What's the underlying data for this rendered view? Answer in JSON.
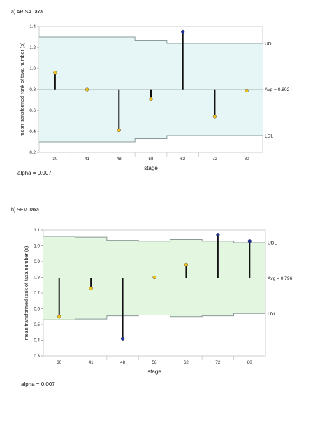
{
  "colors": {
    "band_a": "#e6f6f7",
    "band_b": "#e3f6e0",
    "limit_line": "#8a9a98",
    "avg_line": "#b8c8c6",
    "stem": "#111111",
    "point_within": "#f0c21c",
    "point_outside": "#1c2f9c"
  },
  "panels": [
    {
      "title": "a) ARISA Taxa",
      "alpha_text": "alpha = 0.007"
    },
    {
      "title": "b) SEM Taxa",
      "alpha_text": "alpha = 0.007"
    }
  ],
  "chart_data": [
    {
      "type": "scatter",
      "title": "a) ARISA Taxa",
      "xlabel": "stage",
      "ylabel": "mean transformed rank of taxa number (s)",
      "categories": [
        "30",
        "41",
        "48",
        "58",
        "62",
        "72",
        "80"
      ],
      "values": [
        0.96,
        0.8,
        0.41,
        0.71,
        1.35,
        0.54,
        0.79
      ],
      "point_status": [
        "within",
        "within",
        "within",
        "within",
        "outside",
        "within",
        "within"
      ],
      "avg": 0.802,
      "avg_label": "Avg = 0.802",
      "udl": [
        1.3,
        1.3,
        1.3,
        1.27,
        1.24,
        1.24,
        1.24
      ],
      "ldl": [
        0.3,
        0.3,
        0.3,
        0.33,
        0.36,
        0.36,
        0.36
      ],
      "udl_label": "UDL",
      "ldl_label": "LDL",
      "ylim": [
        0.2,
        1.4
      ],
      "yticks": [
        "0.2",
        "0.4",
        "0.6",
        "0.8",
        "1.0",
        "1.2",
        "1.4"
      ],
      "grid": false,
      "band": "band_a"
    },
    {
      "type": "scatter",
      "title": "b) SEM Taxa",
      "xlabel": "stage",
      "ylabel": "mean transformed rank of taxa number (s)",
      "categories": [
        "30",
        "41",
        "48",
        "58",
        "62",
        "72",
        "80"
      ],
      "values": [
        0.55,
        0.73,
        0.41,
        0.8,
        0.88,
        1.07,
        1.03
      ],
      "point_status": [
        "within",
        "within",
        "outside",
        "within",
        "within",
        "outside",
        "outside"
      ],
      "avg": 0.796,
      "avg_label": "Avg = 0.796",
      "udl": [
        1.06,
        1.055,
        1.035,
        1.03,
        1.04,
        1.03,
        1.02
      ],
      "ldl": [
        0.53,
        0.535,
        0.555,
        0.56,
        0.55,
        0.555,
        0.57
      ],
      "udl_label": "UDL",
      "ldl_label": "LDL",
      "ylim": [
        0.3,
        1.1
      ],
      "yticks": [
        "0.3",
        "0.4",
        "0.5",
        "0.6",
        "0.7",
        "0.8",
        "0.9",
        "1.0",
        "1.1"
      ],
      "grid": false,
      "band": "band_b"
    }
  ]
}
